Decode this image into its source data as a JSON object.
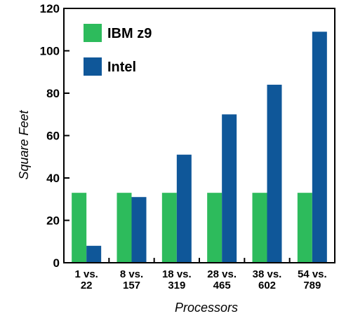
{
  "chart_data": {
    "type": "bar",
    "categories": [
      [
        "1 vs.",
        "22"
      ],
      [
        "8 vs.",
        "157"
      ],
      [
        "18 vs.",
        "319"
      ],
      [
        "28 vs.",
        "465"
      ],
      [
        "38 vs.",
        "602"
      ],
      [
        "54 vs.",
        "789"
      ]
    ],
    "series": [
      {
        "name": "IBM z9",
        "color": "#2dbb5c",
        "values": [
          33,
          33,
          33,
          33,
          33,
          33
        ]
      },
      {
        "name": "Intel",
        "color": "#0f5799",
        "values": [
          8,
          31,
          51,
          70,
          84,
          109
        ]
      }
    ],
    "xlabel": "Processors",
    "ylabel": "Square Feet",
    "ylim": [
      0,
      120
    ],
    "yticks": [
      0,
      20,
      40,
      60,
      80,
      100,
      120
    ],
    "legend": "top-left",
    "grid": false
  }
}
